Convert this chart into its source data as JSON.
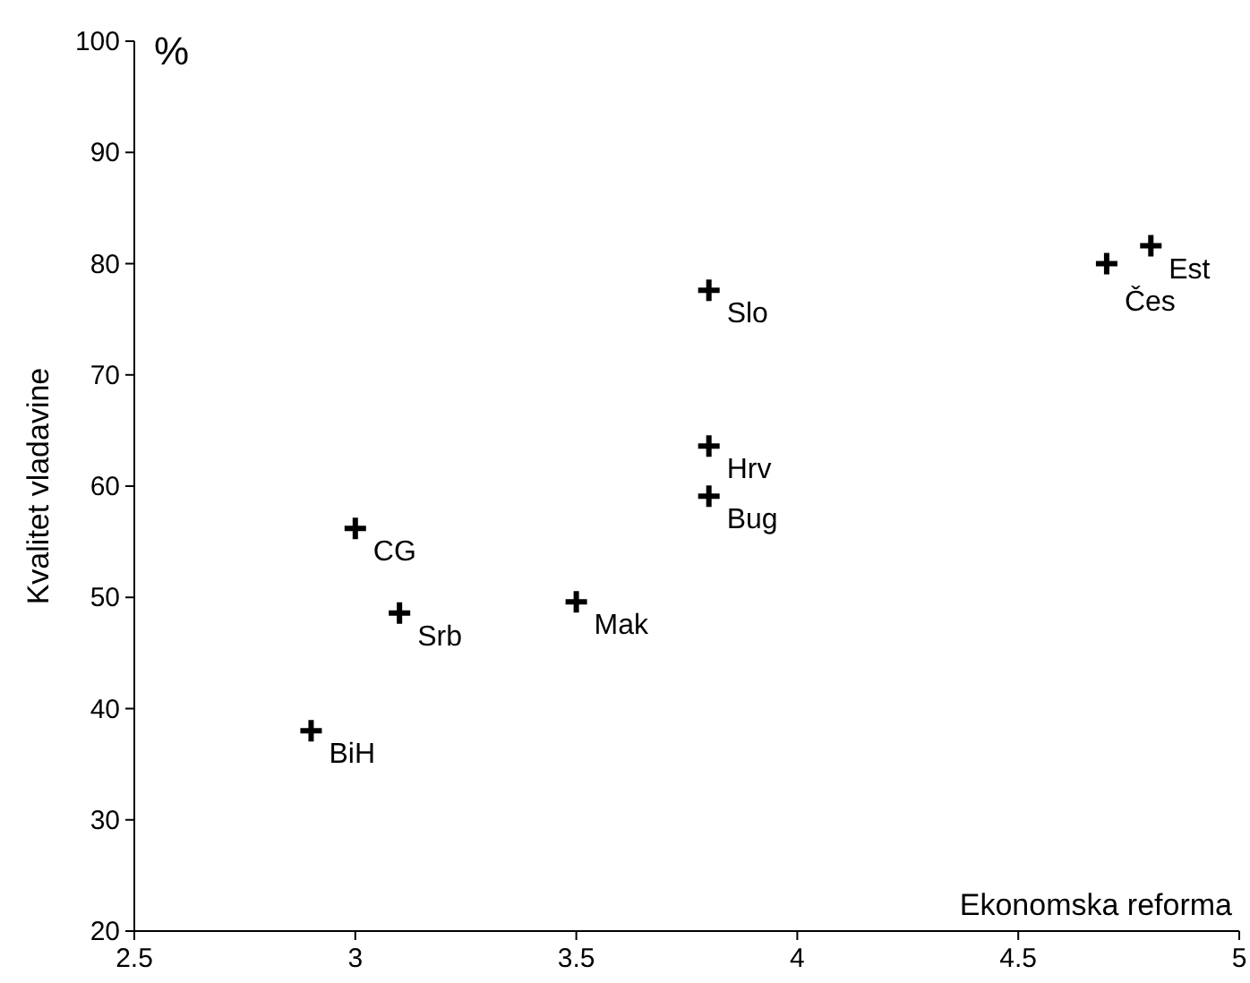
{
  "chart_data": {
    "type": "scatter",
    "xlabel": "Ekonomska reforma",
    "ylabel": "Kvalitet vladavine",
    "x": [
      2.9,
      3.0,
      3.1,
      3.5,
      3.8,
      3.8,
      3.8,
      4.7,
      4.8
    ],
    "series": [
      {
        "color": "#000000",
        "values": [
          38.0,
          56.2,
          48.6,
          49.6,
          59.1,
          63.6,
          77.6,
          80.0,
          81.6
        ]
      }
    ],
    "annotations": [
      "%",
      {
        "text": "BiH",
        "x": 2.9,
        "y": 38.0
      },
      {
        "text": "CG",
        "x": 3.0,
        "y": 56.2
      },
      {
        "text": "Srb",
        "x": 3.1,
        "y": 48.6
      },
      {
        "text": "Mak",
        "x": 3.5,
        "y": 49.6
      },
      {
        "text": "Bug",
        "x": 3.8,
        "y": 59.1
      },
      {
        "text": "Hrv",
        "x": 3.8,
        "y": 63.6
      },
      {
        "text": "Slo",
        "x": 3.8,
        "y": 77.6
      },
      {
        "text": "Čes",
        "x": 4.7,
        "y": 80.0
      },
      {
        "text": "Est",
        "x": 4.8,
        "y": 81.6
      }
    ],
    "xlim": [
      2.5,
      5
    ],
    "xticks": [
      2.5,
      3,
      3.5,
      4,
      4.5,
      5
    ],
    "ylim": [
      20,
      100
    ],
    "yticks": [
      20,
      30,
      40,
      50,
      60,
      70,
      80,
      90,
      100
    ],
    "marker": "cross",
    "grid": false
  }
}
